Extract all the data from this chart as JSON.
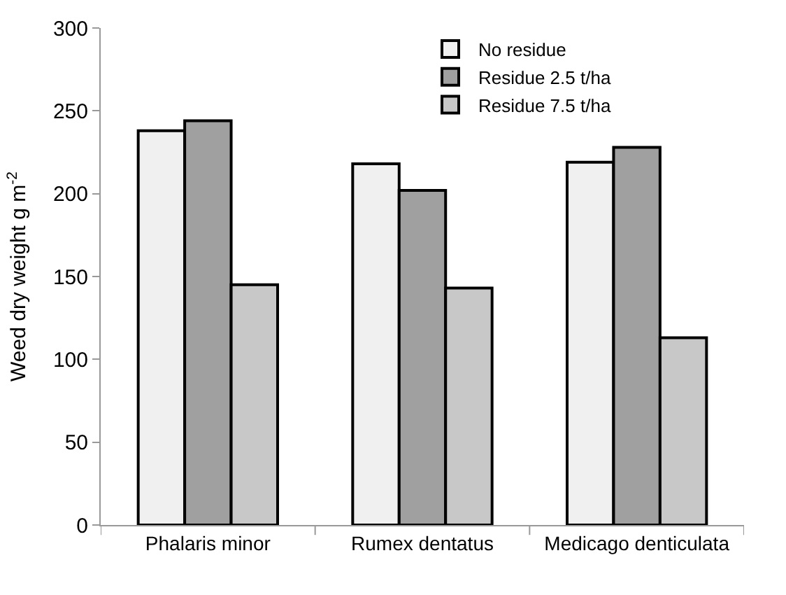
{
  "chart_data": {
    "type": "bar",
    "ylabel": "Weed dry weight g m$^{-2}$",
    "categories": [
      "Phalaris minor",
      "Rumex dentatus",
      "Medicago denticulata"
    ],
    "series": [
      {
        "name": "No residue",
        "color": "#f0f0f0",
        "values": [
          238,
          218,
          219
        ]
      },
      {
        "name": "Residue 2.5 t/ha",
        "color": "#a0a0a0",
        "values": [
          244,
          202,
          228
        ]
      },
      {
        "name": "Residue 7.5 t/ha",
        "color": "#c8c8c8",
        "values": [
          145,
          143,
          113
        ]
      }
    ],
    "ylim": [
      0,
      300
    ],
    "yticks": [
      0,
      50,
      100,
      150,
      200,
      250,
      300
    ],
    "legend": "top"
  }
}
